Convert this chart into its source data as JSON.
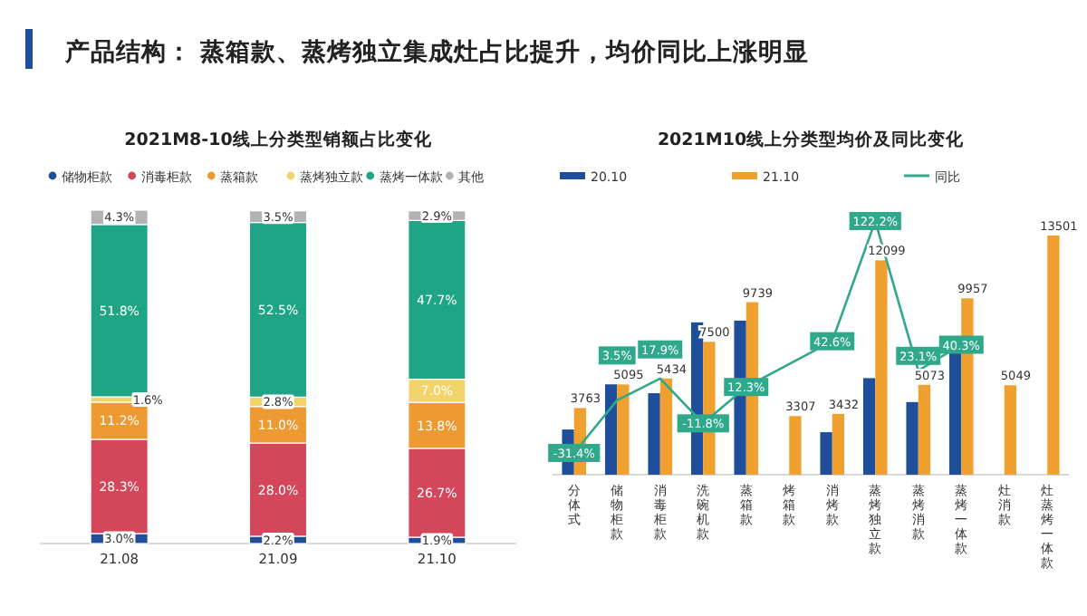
{
  "chart_data": [
    {
      "type": "bar",
      "title": "2021M8-10线上分类型销额占比变化",
      "stacked": true,
      "legend": "top",
      "categories": [
        "21.08",
        "21.09",
        "21.10"
      ],
      "annotations": [
        "产品结构：  蒸箱款、蒸烤独立集成灶占比提升，均价同比上涨明显"
      ],
      "series": [
        {
          "name": "储物柜款",
          "color": "#1f4e9a",
          "values": [
            3.0,
            2.2,
            1.9
          ],
          "value_labels": [
            "3.0%",
            "2.2%",
            "1.9%"
          ]
        },
        {
          "name": "消毒柜款",
          "color": "#d4475a",
          "values": [
            28.3,
            28.0,
            26.7
          ],
          "value_labels": [
            "28.3%",
            "28.0%",
            "26.7%"
          ]
        },
        {
          "name": "蒸箱款",
          "color": "#ee9a32",
          "values": [
            11.2,
            11.0,
            13.8
          ],
          "value_labels": [
            "11.2%",
            "11.0%",
            "13.8%"
          ]
        },
        {
          "name": "蒸烤独立款",
          "color": "#f3d46a",
          "values": [
            1.6,
            2.8,
            7.0
          ],
          "value_labels": [
            "1.6%",
            "2.8%",
            "7.0%"
          ]
        },
        {
          "name": "蒸烤一体款",
          "color": "#1fa585",
          "values": [
            51.8,
            52.5,
            47.7
          ],
          "value_labels": [
            "51.8%",
            "52.5%",
            "47.7%"
          ]
        },
        {
          "name": "其他",
          "color": "#b3b3b3",
          "values": [
            4.3,
            3.5,
            2.9
          ],
          "value_labels": [
            "4.3%",
            "3.5%",
            "2.9%"
          ]
        }
      ]
    },
    {
      "type": "bar",
      "title": "2021M10线上分类型均价及同比变化",
      "legend": "top",
      "categories": [
        "分体式",
        "储物柜款",
        "消毒柜款",
        "洗碗机款",
        "蒸箱款",
        "烤箱款",
        "消烤款",
        "蒸烤独立款",
        "蒸烤消款",
        "蒸烤一体款",
        "灶消款",
        "灶蒸烤一体款"
      ],
      "series": [
        {
          "name": "20.10",
          "color": "#1f4e9a",
          "values": [
            2550,
            5100,
            4600,
            8600,
            8700,
            null,
            2400,
            5450,
            4100,
            7100,
            null,
            null
          ]
        },
        {
          "name": "21.10",
          "color": "#f0a02e",
          "values": [
            3763,
            5095,
            5434,
            7500,
            9739,
            3307,
            3432,
            12099,
            5073,
            9957,
            5049,
            13501
          ],
          "value_labels": [
            "3763",
            "5095",
            "5434",
            "7500",
            "9739",
            "3307",
            "3432",
            "12099",
            "5073",
            "9957",
            "5049",
            "13501"
          ]
        },
        {
          "name": "同比",
          "type": "line",
          "axis": "y2",
          "color": "#2fa88c",
          "values": [
            -31.4,
            3.5,
            17.9,
            -11.8,
            12.3,
            null,
            42.6,
            122.2,
            23.1,
            40.3,
            null,
            null
          ],
          "value_labels": [
            "-31.4%",
            "3.5%",
            "17.9%",
            "-11.8%",
            "12.3%",
            null,
            "42.6%",
            "122.2%",
            "23.1%",
            "40.3%",
            null,
            null
          ]
        }
      ]
    }
  ]
}
